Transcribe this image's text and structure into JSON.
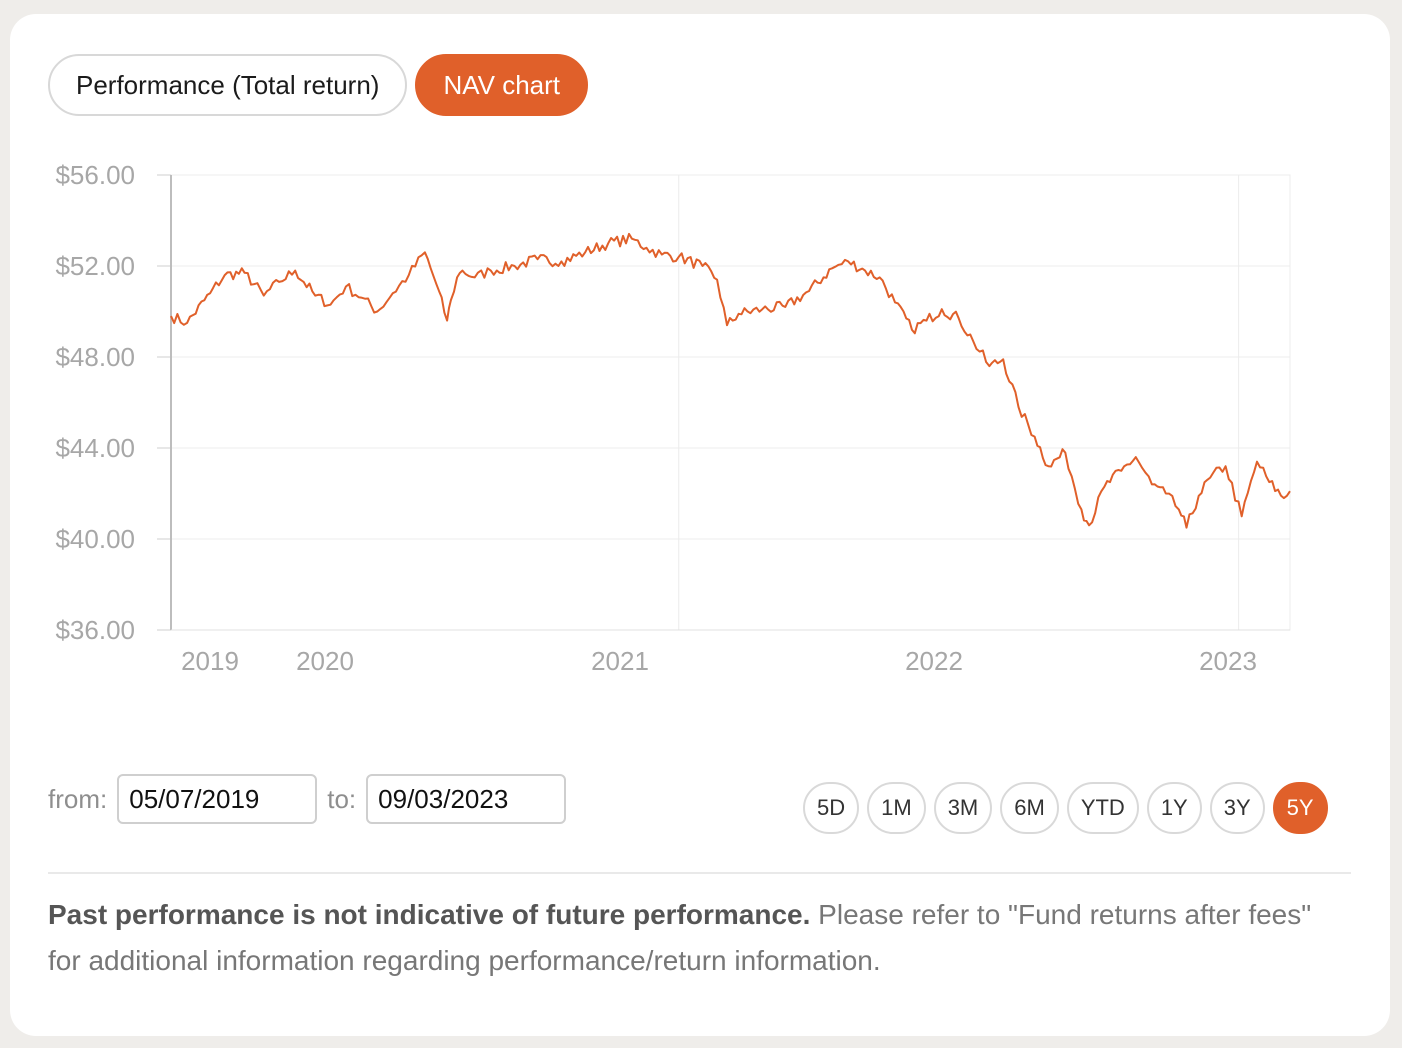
{
  "tabs": {
    "performance_label": "Performance (Total return)",
    "nav_label": "NAV chart"
  },
  "date_range": {
    "from_label": "from:",
    "from_value": "05/07/2019",
    "to_label": "to:",
    "to_value": "09/03/2023"
  },
  "ranges": [
    "5D",
    "1M",
    "3M",
    "6M",
    "YTD",
    "1Y",
    "3Y",
    "5Y"
  ],
  "active_range": "5Y",
  "disclaimer": {
    "bold": "Past performance is not indicative of future performance.",
    "rest": " Please refer to \"Fund returns after fees\" for additional information regarding performance/return information."
  },
  "colors": {
    "accent": "#e0602a",
    "grid": "#ececec",
    "axis_text": "#a7a7a7"
  },
  "chart_data": {
    "type": "line",
    "ylim": [
      36,
      56
    ],
    "y_ticks": [
      "$56.00",
      "$52.00",
      "$48.00",
      "$44.00",
      "$40.00",
      "$36.00"
    ],
    "x_tick_labels": [
      "2019",
      "2020",
      "2021",
      "2022",
      "2023"
    ],
    "series": [
      {
        "x": [
          "2019-03-11",
          "2019-04-01",
          "2019-05-01",
          "2019-05-20",
          "2019-06-15",
          "2019-07-10",
          "2019-07-30",
          "2019-08-20",
          "2019-09-15",
          "2019-10-05",
          "2019-10-25",
          "2019-11-15",
          "2019-12-05",
          "2019-12-25",
          "2020-01-15",
          "2020-02-05",
          "2020-02-20",
          "2020-03-05",
          "2020-03-10",
          "2020-03-18",
          "2020-03-25",
          "2020-04-10",
          "2020-05-01",
          "2020-06-01",
          "2020-07-01",
          "2020-08-01",
          "2020-09-01",
          "2020-10-01",
          "2020-11-01",
          "2020-11-20",
          "2020-12-10",
          "2021-01-01",
          "2021-02-01",
          "2021-02-20",
          "2021-03-05",
          "2021-03-20",
          "2021-04-20",
          "2021-05-20",
          "2021-06-20",
          "2021-07-20",
          "2021-08-10",
          "2021-09-01",
          "2021-09-20",
          "2021-10-10",
          "2021-11-01",
          "2021-11-20",
          "2021-12-10",
          "2022-01-01",
          "2022-01-20",
          "2022-02-10",
          "2022-02-28",
          "2022-03-20",
          "2022-04-10",
          "2022-04-28",
          "2022-05-20",
          "2022-06-10",
          "2022-06-20",
          "2022-07-10",
          "2022-08-01",
          "2022-08-20",
          "2022-09-10",
          "2022-09-28",
          "2022-10-15",
          "2022-10-25",
          "2022-11-10",
          "2022-11-25",
          "2022-12-15",
          "2023-01-05",
          "2023-01-25",
          "2023-02-10",
          "2023-03-01",
          "2023-03-09"
        ],
        "y": [
          49.8,
          49.5,
          50.8,
          51.6,
          51.7,
          50.7,
          51.3,
          51.8,
          50.7,
          50.3,
          51.1,
          50.6,
          50.0,
          50.8,
          51.6,
          52.6,
          51.2,
          49.6,
          50.5,
          51.5,
          51.8,
          51.5,
          51.8,
          52.0,
          52.3,
          52.2,
          52.6,
          53.0,
          53.2,
          52.8,
          52.5,
          52.4,
          52.0,
          51.4,
          49.4,
          49.9,
          50.1,
          50.2,
          50.9,
          51.9,
          52.2,
          51.8,
          51.5,
          50.4,
          49.2,
          49.6,
          50.1,
          49.7,
          48.7,
          47.6,
          47.9,
          45.8,
          44.5,
          43.2,
          43.8,
          41.3,
          40.6,
          42.3,
          43.0,
          43.6,
          42.4,
          42.0,
          41.3,
          40.5,
          41.9,
          42.7,
          43.2,
          41.0,
          43.4,
          42.5,
          41.8,
          42.1
        ]
      }
    ]
  }
}
